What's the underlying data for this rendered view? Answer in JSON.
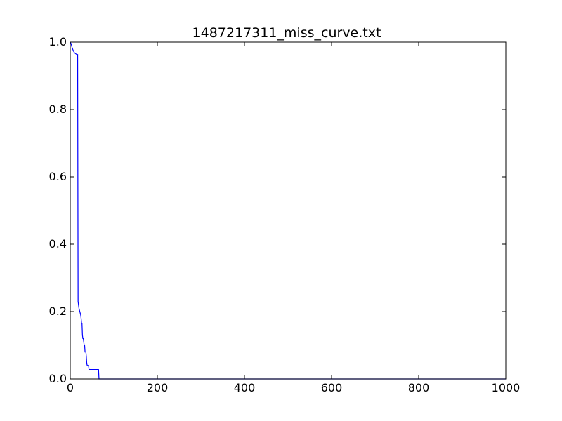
{
  "chart_data": {
    "type": "line",
    "title": "1487217311_miss_curve.txt",
    "xlabel": "",
    "ylabel": "",
    "xlim": [
      0,
      1000
    ],
    "ylim": [
      0.0,
      1.0
    ],
    "x_ticks": [
      0,
      200,
      400,
      600,
      800,
      1000
    ],
    "y_ticks": [
      0.0,
      0.2,
      0.4,
      0.6,
      0.8,
      1.0
    ],
    "x_tick_labels": [
      "0",
      "200",
      "400",
      "600",
      "800",
      "1000"
    ],
    "y_tick_labels": [
      "0.0",
      "0.2",
      "0.4",
      "0.6",
      "0.8",
      "1.0"
    ],
    "grid": false,
    "series": [
      {
        "color": "#0000ff",
        "x": [
          0,
          2,
          4,
          6,
          8,
          10,
          12,
          14,
          16,
          17,
          18,
          19,
          20,
          22,
          24,
          25,
          26,
          27,
          28,
          29,
          30,
          31,
          32,
          33,
          34,
          35,
          36,
          37,
          38,
          39,
          40,
          41,
          42,
          43,
          44,
          45,
          46,
          47,
          48,
          49,
          50,
          51,
          52,
          53,
          54,
          55,
          56,
          57,
          58,
          59,
          60,
          61,
          62,
          63,
          64,
          65,
          66,
          67,
          68,
          70,
          100,
          200,
          400,
          600,
          800,
          1000
        ],
        "y": [
          1.0,
          0.995,
          0.985,
          0.978,
          0.972,
          0.968,
          0.966,
          0.964,
          0.963,
          0.963,
          0.23,
          0.22,
          0.21,
          0.2,
          0.19,
          0.18,
          0.165,
          0.165,
          0.13,
          0.12,
          0.12,
          0.11,
          0.1,
          0.1,
          0.08,
          0.08,
          0.08,
          0.065,
          0.045,
          0.04,
          0.04,
          0.04,
          0.04,
          0.028,
          0.028,
          0.028,
          0.028,
          0.028,
          0.028,
          0.028,
          0.028,
          0.028,
          0.028,
          0.028,
          0.028,
          0.028,
          0.028,
          0.028,
          0.028,
          0.028,
          0.028,
          0.028,
          0.028,
          0.028,
          0.028,
          0.028,
          0.0,
          0.0,
          0.0,
          0.0,
          0.0,
          0.0,
          0.0,
          0.0,
          0.0,
          0.0
        ]
      }
    ]
  }
}
